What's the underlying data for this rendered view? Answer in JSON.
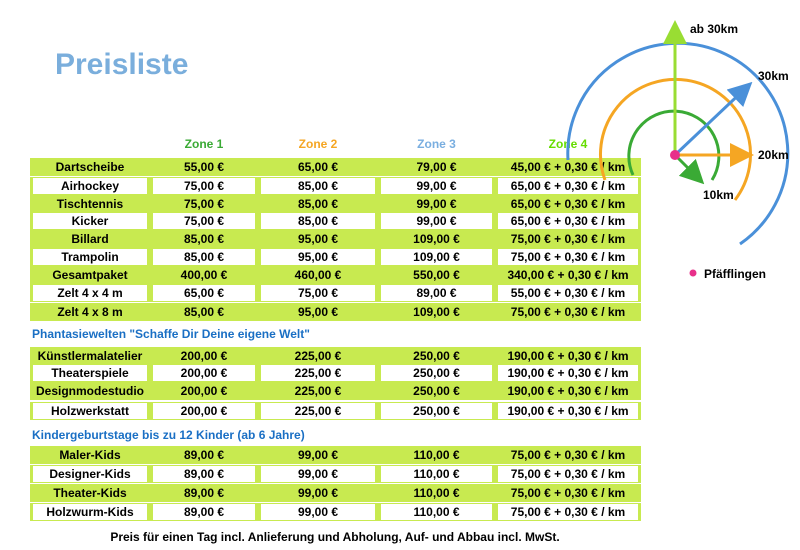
{
  "header": {
    "title": "Preisliste",
    "zones": [
      "Zone 1",
      "Zone 2",
      "Zone 3",
      "Zone 4"
    ]
  },
  "sections": [
    {
      "rows": [
        [
          "Dartscheibe",
          "55,00 €",
          "65,00 €",
          "79,00 €",
          "45,00 € + 0,30 € / km"
        ],
        [
          "Airhockey",
          "75,00 €",
          "85,00 €",
          "99,00 €",
          "65,00 € + 0,30 € / km"
        ],
        [
          "Tischtennis",
          "75,00 €",
          "85,00 €",
          "99,00 €",
          "65,00 € + 0,30 € / km"
        ],
        [
          "Kicker",
          "75,00 €",
          "85,00 €",
          "99,00 €",
          "65,00 € + 0,30 € / km"
        ],
        [
          "Billard",
          "85,00 €",
          "95,00 €",
          "109,00 €",
          "75,00 € + 0,30 € / km"
        ],
        [
          "Trampolin",
          "85,00 €",
          "95,00 €",
          "109,00 €",
          "75,00 € + 0,30 € / km"
        ],
        [
          "Gesamtpaket",
          "400,00 €",
          "460,00 €",
          "550,00 €",
          "340,00 € + 0,30 € / km"
        ],
        [
          "Zelt 4 x 4 m",
          "65,00 €",
          "75,00 €",
          "89,00 €",
          "55,00 € + 0,30 € / km"
        ],
        [
          "Zelt 4 x 8 m",
          "85,00 €",
          "95,00 €",
          "109,00 €",
          "75,00 € + 0,30 € / km"
        ]
      ]
    },
    {
      "heading": "Phantasiewelten \"Schaffe Dir Deine eigene Welt\"",
      "rows": [
        [
          "Künstlermalatelier",
          "200,00 €",
          "225,00 €",
          "250,00 €",
          "190,00 € + 0,30 € / km"
        ],
        [
          "Theaterspiele",
          "200,00 €",
          "225,00 €",
          "250,00 €",
          "190,00 € + 0,30 € / km"
        ],
        [
          "Designmodestudio",
          "200,00 €",
          "225,00 €",
          "250,00 €",
          "190,00 € + 0,30 € / km"
        ],
        [
          "Holzwerkstatt",
          "200,00 €",
          "225,00 €",
          "250,00 €",
          "190,00 € + 0,30 € / km"
        ]
      ]
    },
    {
      "heading": "Kindergeburtstage bis zu 12 Kinder (ab 6 Jahre)",
      "rows": [
        [
          "Maler-Kids",
          "89,00 €",
          "99,00 €",
          "110,00 €",
          "75,00 € + 0,30 € / km"
        ],
        [
          "Designer-Kids",
          "89,00 €",
          "99,00 €",
          "110,00 €",
          "75,00 € + 0,30 € / km"
        ],
        [
          "Theater-Kids",
          "89,00 €",
          "99,00 €",
          "110,00 €",
          "75,00 € + 0,30 € / km"
        ],
        [
          "Holzwurm-Kids",
          "89,00 €",
          "99,00 €",
          "110,00 €",
          "75,00 € + 0,30 € / km"
        ]
      ]
    }
  ],
  "footer": "Preis für einen Tag incl. Anlieferung und Abholung, Auf- und Abbau incl. MwSt.",
  "map": {
    "labels": [
      "ab 30km",
      "30km",
      "20km",
      "10km"
    ],
    "legend": "Pfäfflingen"
  }
}
